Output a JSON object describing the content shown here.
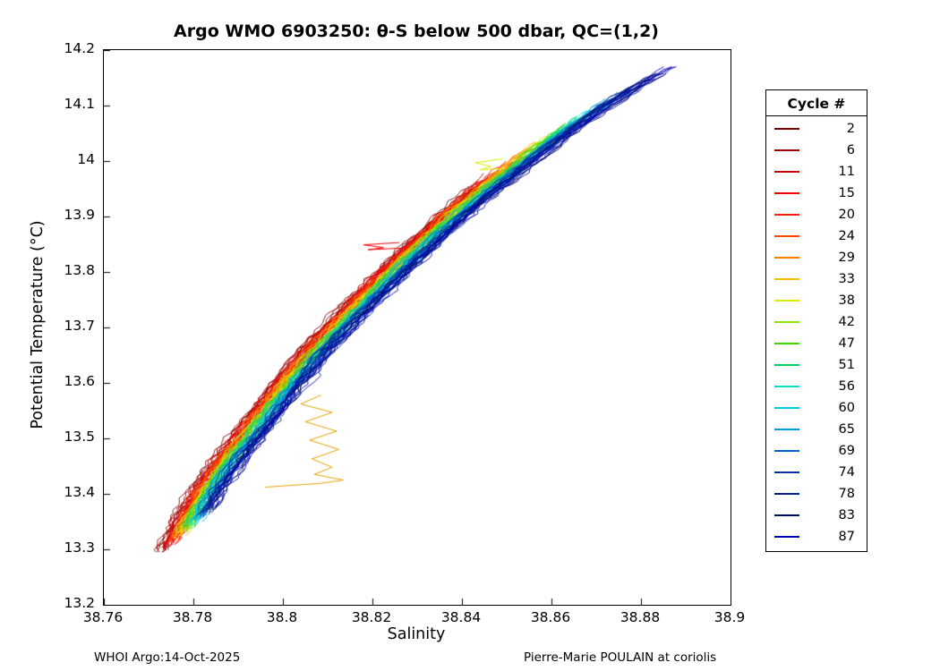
{
  "footer": {
    "left": "WHOI Argo:14-Oct-2025",
    "right": "Pierre-Marie POULAIN at coriolis"
  },
  "chart_data": {
    "type": "line",
    "title": "Argo WMO 6903250: θ-S below 500 dbar,  QC=(1,2)",
    "xlabel": "Salinity",
    "ylabel": "Potential Temperature (°C)",
    "xlim": [
      38.76,
      38.9
    ],
    "ylim": [
      13.2,
      14.2
    ],
    "grid": false,
    "legend_title": "Cycle #",
    "legend_position": "outside-right",
    "x_ticks": {
      "values": [
        38.76,
        38.78,
        38.8,
        38.82,
        38.84,
        38.86,
        38.88,
        38.9
      ],
      "labels": [
        "38.76",
        "38.78",
        "38.8",
        "38.82",
        "38.84",
        "38.86",
        "38.88",
        "38.9"
      ]
    },
    "y_ticks": {
      "values": [
        13.2,
        13.3,
        13.4,
        13.5,
        13.6,
        13.7,
        13.8,
        13.9,
        14.0,
        14.1,
        14.2
      ],
      "labels": [
        "13.2",
        "13.3",
        "13.4",
        "13.5",
        "13.6",
        "13.7",
        "13.8",
        "13.9",
        "14",
        "14.1",
        "14.2"
      ]
    },
    "base_curve": {
      "theta": [
        13.295,
        13.35,
        13.4,
        13.45,
        13.5,
        13.55,
        13.6,
        13.65,
        13.7,
        13.75,
        13.8,
        13.85,
        13.9,
        13.95,
        14.0,
        14.05,
        14.1,
        14.15,
        14.17
      ],
      "salinity": [
        38.7715,
        38.775,
        38.7785,
        38.7828,
        38.7876,
        38.7925,
        38.7972,
        38.8025,
        38.8082,
        38.8142,
        38.8205,
        38.827,
        38.8338,
        38.8412,
        38.849,
        38.857,
        38.8655,
        38.8755,
        38.88
      ]
    },
    "series": [
      {
        "name": "2",
        "color": "#7f0000",
        "s_offset": 0.0,
        "theta_min": 13.295,
        "theta_max": 13.955
      },
      {
        "name": "6",
        "color": "#a50000",
        "s_offset": 0.00033,
        "theta_min": 13.299,
        "theta_max": 13.966
      },
      {
        "name": "11",
        "color": "#cb0000",
        "s_offset": 0.00066,
        "theta_min": 13.303,
        "theta_max": 13.978
      },
      {
        "name": "15",
        "color": "#f10000",
        "s_offset": 0.00099,
        "theta_min": 13.308,
        "theta_max": 13.989
      },
      {
        "name": "20",
        "color": "#ff1e00",
        "s_offset": 0.00132,
        "theta_min": 13.312,
        "theta_max": 14.0
      },
      {
        "name": "24",
        "color": "#ff4500",
        "s_offset": 0.00165,
        "theta_min": 13.316,
        "theta_max": 14.011
      },
      {
        "name": "29",
        "color": "#ff7d00",
        "s_offset": 0.00198,
        "theta_min": 13.32,
        "theta_max": 14.023
      },
      {
        "name": "33",
        "color": "#ffb900",
        "s_offset": 0.00231,
        "theta_min": 13.324,
        "theta_max": 14.034
      },
      {
        "name": "38",
        "color": "#d9ee00",
        "s_offset": 0.00264,
        "theta_min": 13.329,
        "theta_max": 14.045
      },
      {
        "name": "42",
        "color": "#8ce600",
        "s_offset": 0.00297,
        "theta_min": 13.333,
        "theta_max": 14.057
      },
      {
        "name": "47",
        "color": "#3cd800",
        "s_offset": 0.0033,
        "theta_min": 13.337,
        "theta_max": 14.068
      },
      {
        "name": "51",
        "color": "#00d264",
        "s_offset": 0.00363,
        "theta_min": 13.341,
        "theta_max": 14.079
      },
      {
        "name": "56",
        "color": "#00e0c8",
        "s_offset": 0.00396,
        "theta_min": 13.345,
        "theta_max": 14.091
      },
      {
        "name": "60",
        "color": "#00c8e6",
        "s_offset": 0.00429,
        "theta_min": 13.35,
        "theta_max": 14.102
      },
      {
        "name": "65",
        "color": "#0096dc",
        "s_offset": 0.00462,
        "theta_min": 13.354,
        "theta_max": 14.113
      },
      {
        "name": "69",
        "color": "#0064c8",
        "s_offset": 0.00495,
        "theta_min": 13.358,
        "theta_max": 14.124
      },
      {
        "name": "74",
        "color": "#0032aa",
        "s_offset": 0.00528,
        "theta_min": 13.362,
        "theta_max": 14.136
      },
      {
        "name": "78",
        "color": "#001e8c",
        "s_offset": 0.00561,
        "theta_min": 13.366,
        "theta_max": 14.147
      },
      {
        "name": "83",
        "color": "#000f64",
        "s_offset": 0.00594,
        "theta_min": 13.371,
        "theta_max": 14.158
      },
      {
        "name": "87",
        "color": "#0000b4",
        "s_offset": 0.00627,
        "theta_min": 13.375,
        "theta_max": 14.17
      }
    ],
    "extra_segments": [
      {
        "label": "orange-outlier-zigzag",
        "color": "#e6a000",
        "points": [
          [
            38.8085,
            13.578
          ],
          [
            38.804,
            13.562
          ],
          [
            38.811,
            13.547
          ],
          [
            38.805,
            13.53
          ],
          [
            38.812,
            13.513
          ],
          [
            38.806,
            13.497
          ],
          [
            38.8125,
            13.48
          ],
          [
            38.8065,
            13.463
          ],
          [
            38.811,
            13.448
          ],
          [
            38.807,
            13.435
          ],
          [
            38.8135,
            13.425
          ],
          [
            38.8085,
            13.419
          ],
          [
            38.796,
            13.412
          ]
        ]
      },
      {
        "label": "red-spur",
        "color": "#ef0000",
        "points": [
          [
            38.826,
            13.853
          ],
          [
            38.818,
            13.849
          ],
          [
            38.8225,
            13.844
          ],
          [
            38.819,
            13.84
          ],
          [
            38.8265,
            13.843
          ]
        ]
      },
      {
        "label": "yellow-green-spur",
        "color": "#d9ee00",
        "points": [
          [
            38.849,
            14.004
          ],
          [
            38.843,
            13.997
          ],
          [
            38.8465,
            13.99
          ],
          [
            38.844,
            13.984
          ],
          [
            38.85,
            13.987
          ]
        ]
      }
    ]
  }
}
